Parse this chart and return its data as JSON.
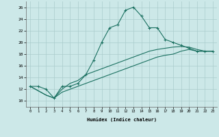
{
  "title": "",
  "xlabel": "Humidex (Indice chaleur)",
  "bg_color": "#cce8e8",
  "grid_color": "#aacccc",
  "line_color": "#1a7060",
  "xlim": [
    -0.5,
    23.5
  ],
  "ylim": [
    9,
    27
  ],
  "xticks": [
    0,
    1,
    2,
    3,
    4,
    5,
    6,
    7,
    8,
    9,
    10,
    11,
    12,
    13,
    14,
    15,
    16,
    17,
    18,
    19,
    20,
    21,
    22,
    23
  ],
  "yticks": [
    10,
    12,
    14,
    16,
    18,
    20,
    22,
    24,
    26
  ],
  "s1_x": [
    0,
    1,
    2,
    3,
    4,
    5,
    6,
    7,
    8,
    9,
    10,
    11,
    12,
    13,
    14,
    15,
    16,
    17,
    18,
    19,
    20,
    21,
    22,
    23
  ],
  "s1_y": [
    12.5,
    12.5,
    12.0,
    10.5,
    12.5,
    12.5,
    13.0,
    14.5,
    17.0,
    20.0,
    22.5,
    23.0,
    25.5,
    26.0,
    24.5,
    22.5,
    22.5,
    20.5,
    20.0,
    19.5,
    19.0,
    18.5,
    18.5,
    18.5
  ],
  "s2_x": [
    0,
    2,
    3,
    4,
    5,
    6,
    7,
    8,
    9,
    10,
    11,
    12,
    13,
    14,
    15,
    16,
    17,
    18,
    19,
    20,
    21,
    22,
    23
  ],
  "s2_y": [
    12.5,
    11.0,
    10.5,
    11.5,
    12.0,
    12.5,
    13.0,
    13.5,
    14.0,
    14.5,
    15.0,
    15.5,
    16.0,
    16.5,
    17.0,
    17.5,
    17.8,
    18.0,
    18.5,
    18.8,
    18.5,
    18.5,
    18.5
  ],
  "s3_x": [
    0,
    2,
    3,
    4,
    5,
    6,
    7,
    8,
    9,
    10,
    11,
    12,
    13,
    14,
    15,
    16,
    17,
    18,
    19,
    20,
    21,
    22,
    23
  ],
  "s3_y": [
    12.5,
    11.0,
    10.5,
    12.0,
    13.0,
    13.5,
    14.5,
    15.0,
    15.5,
    16.0,
    16.5,
    17.0,
    17.5,
    18.0,
    18.5,
    18.8,
    19.0,
    19.2,
    19.3,
    19.2,
    18.8,
    18.5,
    18.5
  ]
}
